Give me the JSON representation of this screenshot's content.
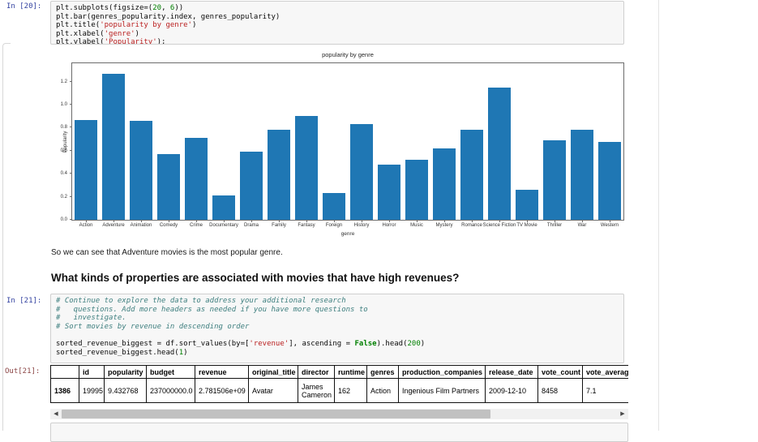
{
  "cells": {
    "in20": {
      "prompt": "In [20]:",
      "code": [
        [
          [
            "n",
            "plt.subplots(figsize=("
          ],
          [
            "num",
            "20"
          ],
          [
            "n",
            ", "
          ],
          [
            "num",
            "6"
          ],
          [
            "n",
            "))"
          ]
        ],
        [
          [
            "n",
            "plt.bar(genres_popularity.index, genres_popularity)"
          ]
        ],
        [
          [
            "n",
            "plt.title("
          ],
          [
            "str",
            "'popularity by genre'"
          ],
          [
            "n",
            ")"
          ]
        ],
        [
          [
            "n",
            "plt.xlabel("
          ],
          [
            "str",
            "'genre'"
          ],
          [
            "n",
            ")"
          ]
        ],
        [
          [
            "n",
            "plt.ylabel("
          ],
          [
            "str",
            "'Popularity'"
          ],
          [
            "n",
            ");"
          ]
        ]
      ]
    },
    "in21": {
      "prompt": "In [21]:",
      "code": [
        [
          [
            "com",
            "# Continue to explore the data to address your additional research"
          ]
        ],
        [
          [
            "com",
            "#   questions. Add more headers as needed if you have more questions to"
          ]
        ],
        [
          [
            "com",
            "#   investigate."
          ]
        ],
        [
          [
            "com",
            "# Sort movies by revenue in descending order"
          ]
        ],
        [
          [
            "n",
            ""
          ]
        ],
        [
          [
            "n",
            "sorted_revenue_biggest = df.sort_values(by=["
          ],
          [
            "str",
            "'revenue'"
          ],
          [
            "n",
            "], ascending = "
          ],
          [
            "kw",
            "False"
          ],
          [
            "n",
            ").head("
          ],
          [
            "num",
            "200"
          ],
          [
            "n",
            ")"
          ]
        ],
        [
          [
            "n",
            "sorted_revenue_biggest.head("
          ],
          [
            "num",
            "1"
          ],
          [
            "n",
            ")"
          ]
        ]
      ]
    },
    "out21": {
      "prompt": "Out[21]:",
      "table": {
        "headers": [
          "",
          "id",
          "popularity",
          "budget",
          "revenue",
          "original_title",
          "director",
          "runtime",
          "genres",
          "production_companies",
          "release_date",
          "vote_count",
          "vote_average"
        ],
        "rows": [
          [
            "1386",
            "19995",
            "9.432768",
            "237000000.0",
            "2.781506e+09",
            "Avatar",
            "James Cameron",
            "162",
            "Action",
            "Ingenious Film Partners",
            "2009-12-10",
            "8458",
            "7.1"
          ]
        ]
      }
    }
  },
  "markdown": {
    "note": "So we can see that Adventure movies is the most popular genre.",
    "heading": "What kinds of properties are associated with movies that have high revenues?"
  },
  "chart_data": {
    "type": "bar",
    "title": "popularity by genre",
    "xlabel": "genre",
    "ylabel": "Popularity",
    "categories": [
      "Action",
      "Adventure",
      "Animation",
      "Comedy",
      "Crime",
      "Documentary",
      "Drama",
      "Family",
      "Fantasy",
      "Foreign",
      "History",
      "Horror",
      "Music",
      "Mystery",
      "Romance",
      "Science Fiction",
      "TV Movie",
      "Thriller",
      "War",
      "Western"
    ],
    "values": [
      0.87,
      1.27,
      0.86,
      0.57,
      0.71,
      0.21,
      0.59,
      0.78,
      0.9,
      0.23,
      0.83,
      0.48,
      0.52,
      0.62,
      0.78,
      1.15,
      0.26,
      0.69,
      0.78,
      0.68
    ],
    "yticks": [
      0.0,
      0.2,
      0.4,
      0.6,
      0.8,
      1.0,
      1.2
    ],
    "ylim": [
      0,
      1.36
    ],
    "grid": false,
    "legend": "none",
    "bar_color": "#1f77b4"
  },
  "scrollbar": {
    "left_arrow": "◀",
    "right_arrow": "▶"
  }
}
